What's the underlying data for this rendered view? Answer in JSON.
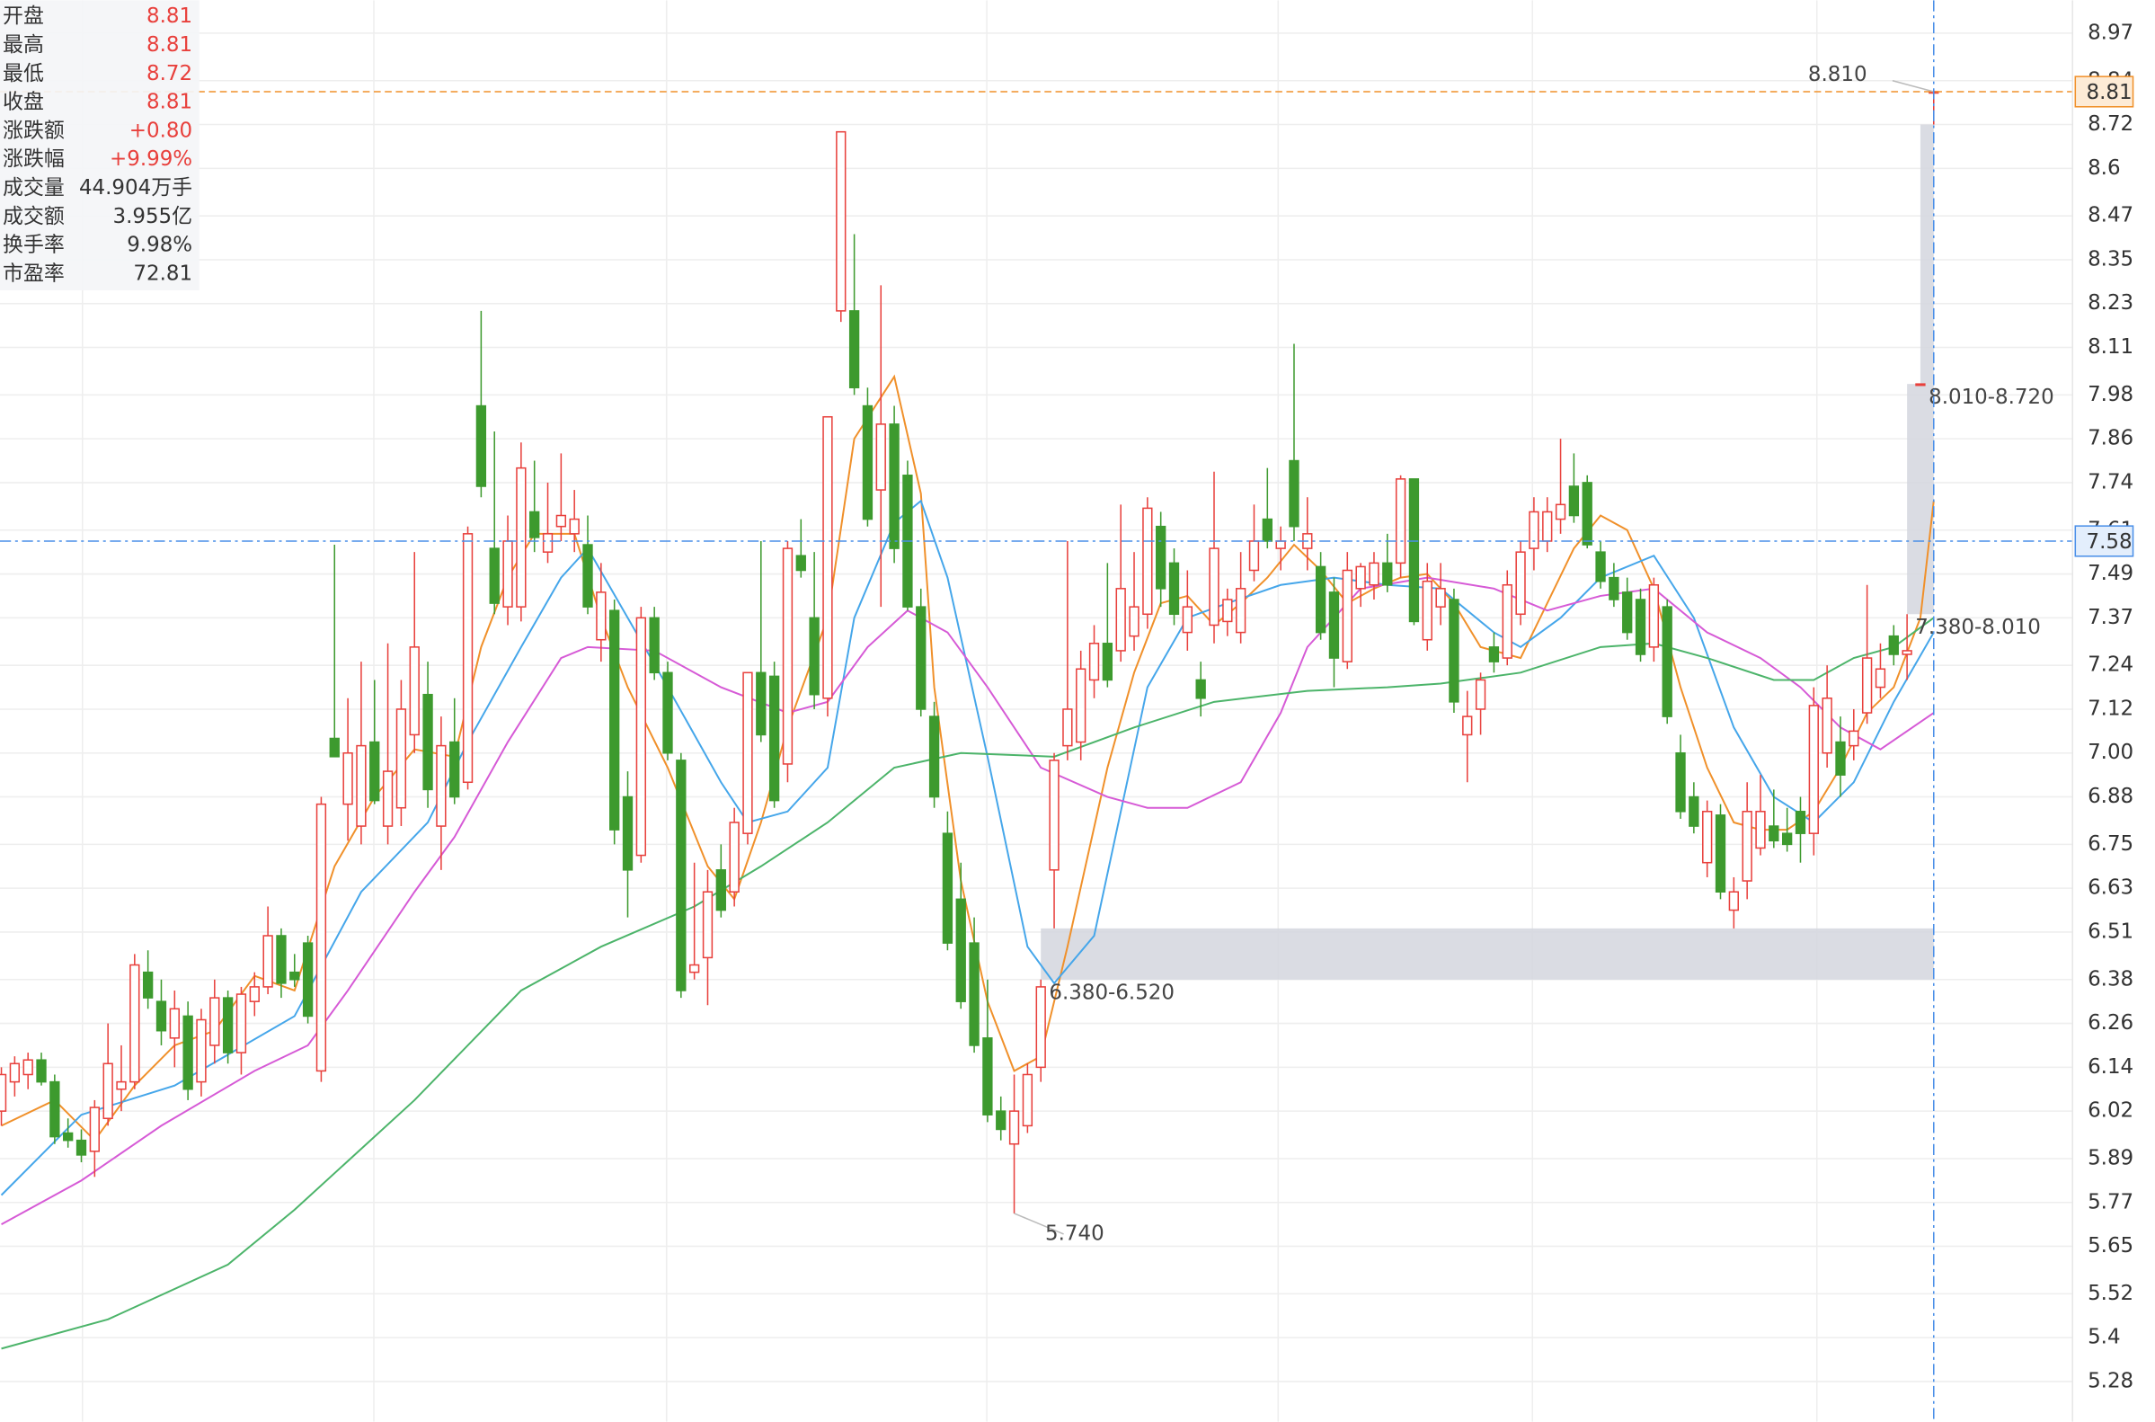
{
  "chart_data": {
    "type": "candlestick",
    "up_color": "#e8403c",
    "down_color": "#3d9a2e",
    "ylim": [
      5.17,
      9.06
    ],
    "yticks": [
      8.97,
      8.84,
      8.72,
      8.6,
      8.47,
      8.35,
      8.23,
      8.11,
      7.98,
      7.86,
      7.74,
      7.61,
      7.49,
      7.37,
      7.24,
      7.12,
      {
        "value": 7,
        "label": "7.00"
      },
      6.88,
      6.75,
      6.63,
      6.51,
      6.38,
      6.26,
      6.14,
      6.02,
      5.89,
      5.77,
      5.65,
      5.52,
      5.4,
      5.28
    ],
    "grid": true,
    "ohlc": [
      [
        6.02,
        6.14,
        5.98,
        6.12
      ],
      [
        6.1,
        6.17,
        6.06,
        6.15
      ],
      [
        6.12,
        6.18,
        6.08,
        6.16
      ],
      [
        6.16,
        6.18,
        6.09,
        6.1
      ],
      [
        6.1,
        6.12,
        5.93,
        5.95
      ],
      [
        5.96,
        6.0,
        5.92,
        5.94
      ],
      [
        5.94,
        5.97,
        5.88,
        5.9
      ],
      [
        5.91,
        6.05,
        5.84,
        6.03
      ],
      [
        6.0,
        6.26,
        5.98,
        6.15
      ],
      [
        6.08,
        6.2,
        6.02,
        6.1
      ],
      [
        6.1,
        6.45,
        6.08,
        6.42
      ],
      [
        6.4,
        6.46,
        6.3,
        6.33
      ],
      [
        6.32,
        6.38,
        6.2,
        6.24
      ],
      [
        6.22,
        6.35,
        6.14,
        6.3
      ],
      [
        6.28,
        6.32,
        6.05,
        6.08
      ],
      [
        6.1,
        6.3,
        6.06,
        6.27
      ],
      [
        6.2,
        6.38,
        6.15,
        6.33
      ],
      [
        6.33,
        6.35,
        6.15,
        6.18
      ],
      [
        6.18,
        6.36,
        6.12,
        6.34
      ],
      [
        6.32,
        6.4,
        6.28,
        6.36
      ],
      [
        6.36,
        6.58,
        6.34,
        6.5
      ],
      [
        6.5,
        6.52,
        6.33,
        6.37
      ],
      [
        6.4,
        6.45,
        6.36,
        6.38
      ],
      [
        6.48,
        6.5,
        6.26,
        6.28
      ],
      [
        6.13,
        6.88,
        6.1,
        6.86
      ],
      [
        7.04,
        7.57,
        6.99,
        6.99
      ],
      [
        6.86,
        7.15,
        6.76,
        7.0
      ],
      [
        6.8,
        7.25,
        6.75,
        7.02
      ],
      [
        7.03,
        7.2,
        6.86,
        6.87
      ],
      [
        6.8,
        7.3,
        6.75,
        6.95
      ],
      [
        6.85,
        7.2,
        6.8,
        7.12
      ],
      [
        7.05,
        7.55,
        7.0,
        7.29
      ],
      [
        7.16,
        7.25,
        6.85,
        6.9
      ],
      [
        6.8,
        7.1,
        6.68,
        7.02
      ],
      [
        7.03,
        7.15,
        6.86,
        6.88
      ],
      [
        6.92,
        7.62,
        6.9,
        7.6
      ],
      [
        7.95,
        8.21,
        7.7,
        7.73
      ],
      [
        7.56,
        7.88,
        7.38,
        7.41
      ],
      [
        7.4,
        7.65,
        7.35,
        7.58
      ],
      [
        7.4,
        7.85,
        7.36,
        7.78
      ],
      [
        7.66,
        7.8,
        7.55,
        7.59
      ],
      [
        7.55,
        7.74,
        7.52,
        7.6
      ],
      [
        7.62,
        7.82,
        7.58,
        7.65
      ],
      [
        7.6,
        7.72,
        7.55,
        7.64
      ],
      [
        7.57,
        7.65,
        7.38,
        7.4
      ],
      [
        7.31,
        7.52,
        7.25,
        7.44
      ],
      [
        7.39,
        7.42,
        6.75,
        6.79
      ],
      [
        6.88,
        6.95,
        6.55,
        6.68
      ],
      [
        6.72,
        7.4,
        6.7,
        7.37
      ],
      [
        7.37,
        7.4,
        7.2,
        7.22
      ],
      [
        7.22,
        7.25,
        6.98,
        7.0
      ],
      [
        6.98,
        7.0,
        6.33,
        6.35
      ],
      [
        6.4,
        6.7,
        6.38,
        6.42
      ],
      [
        6.44,
        6.68,
        6.31,
        6.62
      ],
      [
        6.68,
        6.75,
        6.55,
        6.57
      ],
      [
        6.62,
        6.85,
        6.58,
        6.81
      ],
      [
        6.78,
        7.22,
        6.75,
        7.22
      ],
      [
        7.22,
        7.58,
        7.03,
        7.05
      ],
      [
        7.21,
        7.25,
        6.85,
        6.87
      ],
      [
        6.97,
        7.58,
        6.92,
        7.56
      ],
      [
        7.54,
        7.64,
        7.48,
        7.5
      ],
      [
        7.37,
        7.55,
        7.12,
        7.16
      ],
      [
        7.15,
        7.9,
        7.1,
        7.92
      ],
      [
        8.21,
        8.7,
        8.18,
        8.7
      ],
      [
        8.21,
        8.42,
        7.98,
        8.0
      ],
      [
        7.95,
        8.0,
        7.62,
        7.64
      ],
      [
        7.72,
        8.28,
        7.4,
        7.9
      ],
      [
        7.9,
        7.95,
        7.52,
        7.56
      ],
      [
        7.76,
        7.8,
        7.39,
        7.4
      ],
      [
        7.4,
        7.45,
        7.1,
        7.12
      ],
      [
        7.1,
        7.14,
        6.85,
        6.88
      ],
      [
        6.78,
        6.84,
        6.46,
        6.48
      ],
      [
        6.6,
        6.7,
        6.3,
        6.32
      ],
      [
        6.48,
        6.55,
        6.18,
        6.2
      ],
      [
        6.22,
        6.38,
        5.99,
        6.01
      ],
      [
        6.02,
        6.06,
        5.94,
        5.97
      ],
      [
        5.93,
        6.12,
        5.74,
        6.02
      ],
      [
        5.98,
        6.15,
        5.96,
        6.12
      ],
      [
        6.14,
        6.38,
        6.1,
        6.36
      ],
      [
        6.68,
        7.0,
        6.52,
        6.98
      ],
      [
        7.02,
        7.58,
        6.98,
        7.12
      ],
      [
        7.03,
        7.28,
        6.98,
        7.23
      ],
      [
        7.2,
        7.35,
        7.15,
        7.3
      ],
      [
        7.3,
        7.52,
        7.18,
        7.2
      ],
      [
        7.28,
        7.68,
        7.25,
        7.45
      ],
      [
        7.32,
        7.55,
        7.28,
        7.4
      ],
      [
        7.38,
        7.7,
        7.34,
        7.67
      ],
      [
        7.62,
        7.66,
        7.4,
        7.45
      ],
      [
        7.52,
        7.56,
        7.35,
        7.38
      ],
      [
        7.33,
        7.5,
        7.28,
        7.4
      ],
      [
        7.2,
        7.25,
        7.1,
        7.15
      ],
      [
        7.35,
        7.77,
        7.3,
        7.56
      ],
      [
        7.36,
        7.45,
        7.32,
        7.42
      ],
      [
        7.33,
        7.55,
        7.3,
        7.45
      ],
      [
        7.5,
        7.68,
        7.47,
        7.58
      ],
      [
        7.64,
        7.78,
        7.56,
        7.58
      ],
      [
        7.56,
        7.62,
        7.5,
        7.58
      ],
      [
        7.8,
        8.12,
        7.58,
        7.62
      ],
      [
        7.56,
        7.7,
        7.5,
        7.6
      ],
      [
        7.51,
        7.55,
        7.31,
        7.33
      ],
      [
        7.44,
        7.48,
        7.18,
        7.26
      ],
      [
        7.25,
        7.55,
        7.23,
        7.5
      ],
      [
        7.45,
        7.52,
        7.4,
        7.51
      ],
      [
        7.46,
        7.55,
        7.42,
        7.52
      ],
      [
        7.52,
        7.6,
        7.44,
        7.46
      ],
      [
        7.52,
        7.76,
        7.48,
        7.75
      ],
      [
        7.75,
        7.75,
        7.35,
        7.36
      ],
      [
        7.31,
        7.52,
        7.28,
        7.47
      ],
      [
        7.4,
        7.52,
        7.35,
        7.45
      ],
      [
        7.42,
        7.45,
        7.11,
        7.14
      ],
      [
        7.05,
        7.17,
        6.92,
        7.1
      ],
      [
        7.12,
        7.22,
        7.05,
        7.2
      ],
      [
        7.29,
        7.33,
        7.22,
        7.25
      ],
      [
        7.26,
        7.5,
        7.24,
        7.46
      ],
      [
        7.38,
        7.58,
        7.35,
        7.55
      ],
      [
        7.56,
        7.7,
        7.5,
        7.66
      ],
      [
        7.58,
        7.7,
        7.55,
        7.66
      ],
      [
        7.64,
        7.86,
        7.6,
        7.68
      ],
      [
        7.73,
        7.82,
        7.63,
        7.65
      ],
      [
        7.74,
        7.76,
        7.56,
        7.57
      ],
      [
        7.55,
        7.58,
        7.45,
        7.47
      ],
      [
        7.48,
        7.52,
        7.4,
        7.42
      ],
      [
        7.44,
        7.48,
        7.31,
        7.33
      ],
      [
        7.42,
        7.45,
        7.25,
        7.27
      ],
      [
        7.29,
        7.48,
        7.25,
        7.46
      ],
      [
        7.4,
        7.42,
        7.08,
        7.1
      ],
      [
        7.0,
        7.05,
        6.82,
        6.84
      ],
      [
        6.88,
        6.92,
        6.78,
        6.8
      ],
      [
        6.7,
        6.87,
        6.66,
        6.84
      ],
      [
        6.83,
        6.86,
        6.6,
        6.62
      ],
      [
        6.57,
        6.66,
        6.52,
        6.62
      ],
      [
        6.65,
        6.92,
        6.6,
        6.84
      ],
      [
        6.74,
        6.94,
        6.72,
        6.84
      ],
      [
        6.8,
        6.9,
        6.74,
        6.76
      ],
      [
        6.78,
        6.85,
        6.73,
        6.75
      ],
      [
        6.84,
        6.88,
        6.7,
        6.78
      ],
      [
        6.78,
        7.18,
        6.72,
        7.13
      ],
      [
        7.0,
        7.24,
        6.96,
        7.15
      ],
      [
        7.03,
        7.1,
        6.88,
        6.94
      ],
      [
        7.02,
        7.12,
        6.98,
        7.06
      ],
      [
        7.11,
        7.46,
        7.08,
        7.26
      ],
      [
        7.18,
        7.3,
        7.15,
        7.23
      ],
      [
        7.32,
        7.35,
        7.24,
        7.27
      ],
      [
        7.27,
        7.38,
        7.2,
        7.28
      ],
      [
        8.01,
        8.01,
        8.01,
        8.01
      ],
      [
        8.81,
        8.81,
        8.72,
        8.81
      ]
    ],
    "lines": [
      {
        "color": "#f0902a",
        "x": [
          0,
          4,
          7,
          10,
          13,
          16,
          19,
          22,
          25,
          28,
          31,
          34,
          36,
          38,
          40,
          43,
          45,
          47,
          50,
          53,
          55,
          57,
          59,
          62,
          64,
          67,
          69,
          70,
          72,
          74,
          76,
          78,
          80,
          83,
          85,
          87,
          89,
          91,
          93,
          95,
          97,
          99,
          101,
          103,
          105,
          107,
          109,
          111,
          114,
          116,
          118,
          120,
          122,
          124,
          126,
          128,
          130,
          132,
          134,
          136,
          138,
          140,
          142,
          144,
          145
        ],
        "values": [
          5.98,
          6.05,
          5.94,
          6.09,
          6.2,
          6.24,
          6.39,
          6.35,
          6.69,
          6.88,
          7.01,
          6.99,
          7.29,
          7.48,
          7.6,
          7.6,
          7.37,
          7.18,
          6.96,
          6.69,
          6.6,
          6.81,
          7.07,
          7.37,
          7.86,
          8.03,
          7.71,
          7.18,
          6.65,
          6.32,
          6.13,
          6.17,
          6.47,
          6.96,
          7.22,
          7.41,
          7.43,
          7.35,
          7.41,
          7.48,
          7.57,
          7.5,
          7.41,
          7.45,
          7.48,
          7.49,
          7.41,
          7.29,
          7.26,
          7.41,
          7.56,
          7.65,
          7.61,
          7.45,
          7.18,
          6.96,
          6.81,
          6.79,
          6.79,
          6.84,
          6.96,
          7.11,
          7.18,
          7.37,
          7.69
        ]
      },
      {
        "color": "#45a6ea",
        "x": [
          0,
          6,
          13,
          22,
          27,
          32,
          35,
          39,
          42,
          44,
          47,
          50,
          54,
          56,
          59,
          62,
          64,
          67,
          69,
          71,
          74,
          77,
          79,
          82,
          84,
          86,
          89,
          92,
          96,
          100,
          104,
          108,
          112,
          114,
          117,
          120,
          124,
          127,
          130,
          133,
          136,
          139,
          142,
          145
        ],
        "values": [
          5.79,
          6.01,
          6.09,
          6.28,
          6.62,
          6.81,
          7.03,
          7.29,
          7.48,
          7.56,
          7.37,
          7.18,
          6.92,
          6.81,
          6.84,
          6.96,
          7.37,
          7.63,
          7.69,
          7.48,
          6.99,
          6.47,
          6.37,
          6.5,
          6.84,
          7.18,
          7.37,
          7.41,
          7.46,
          7.48,
          7.46,
          7.45,
          7.33,
          7.29,
          7.37,
          7.48,
          7.54,
          7.37,
          7.07,
          6.88,
          6.81,
          6.92,
          7.14,
          7.33
        ]
      },
      {
        "color": "#d65ad6",
        "x": [
          0,
          6,
          12,
          19,
          23,
          26,
          31,
          34,
          38,
          42,
          44,
          49,
          54,
          59,
          62,
          65,
          68,
          71,
          74,
          78,
          83,
          86,
          89,
          93,
          96,
          98,
          102,
          107,
          112,
          116,
          120,
          124,
          128,
          132,
          135,
          138,
          141,
          145
        ],
        "values": [
          5.71,
          5.83,
          5.98,
          6.13,
          6.2,
          6.35,
          6.62,
          6.77,
          7.03,
          7.26,
          7.29,
          7.28,
          7.18,
          7.11,
          7.14,
          7.29,
          7.39,
          7.33,
          7.18,
          6.96,
          6.88,
          6.85,
          6.85,
          6.92,
          7.11,
          7.29,
          7.45,
          7.48,
          7.45,
          7.39,
          7.43,
          7.45,
          7.33,
          7.26,
          7.18,
          7.07,
          7.01,
          7.11
        ]
      },
      {
        "color": "#4cb46a",
        "x": [
          0,
          8,
          17,
          22,
          31,
          39,
          45,
          52,
          57,
          62,
          67,
          72,
          79,
          85,
          91,
          98,
          104,
          108,
          114,
          120,
          124,
          128,
          133,
          136,
          139,
          142,
          145
        ],
        "values": [
          5.37,
          5.45,
          5.6,
          5.75,
          6.05,
          6.35,
          6.47,
          6.58,
          6.69,
          6.81,
          6.96,
          7,
          6.99,
          7.07,
          7.14,
          7.17,
          7.18,
          7.19,
          7.22,
          7.29,
          7.3,
          7.26,
          7.2,
          7.2,
          7.26,
          7.29,
          7.37
        ]
      }
    ],
    "zones": [
      {
        "label": "6.380-6.520",
        "low": 6.38,
        "high": 6.52,
        "start": 78
      },
      {
        "label": "7.380-8.010",
        "low": 7.38,
        "high": 8.01,
        "start": 143
      },
      {
        "label": "8.010-8.720",
        "low": 8.01,
        "high": 8.72,
        "start": 144
      }
    ],
    "annotations": [
      {
        "text": "8.810",
        "x": 145,
        "y": 8.81
      },
      {
        "text": "5.740",
        "x": 76,
        "y": 5.74
      }
    ],
    "last_price": 8.81,
    "cursor_price": 7.58
  },
  "info_panel": {
    "rows": [
      {
        "label": "开盘",
        "value": "8.81",
        "color": "#e8403c"
      },
      {
        "label": "最高",
        "value": "8.81",
        "color": "#e8403c"
      },
      {
        "label": "最低",
        "value": "8.72",
        "color": "#e8403c"
      },
      {
        "label": "收盘",
        "value": "8.81",
        "color": "#e8403c"
      },
      {
        "label": "涨跌额",
        "value": "+0.80",
        "color": "#e8403c"
      },
      {
        "label": "涨跌幅",
        "value": "+9.99%",
        "color": "#e8403c"
      },
      {
        "label": "成交量",
        "value": "44.904万手",
        "color": "#333333"
      },
      {
        "label": "成交额",
        "value": "3.955亿",
        "color": "#333333"
      },
      {
        "label": "换手率",
        "value": "9.98%",
        "color": "#333333"
      },
      {
        "label": "市盈率",
        "value": "72.81",
        "color": "#333333"
      }
    ]
  }
}
